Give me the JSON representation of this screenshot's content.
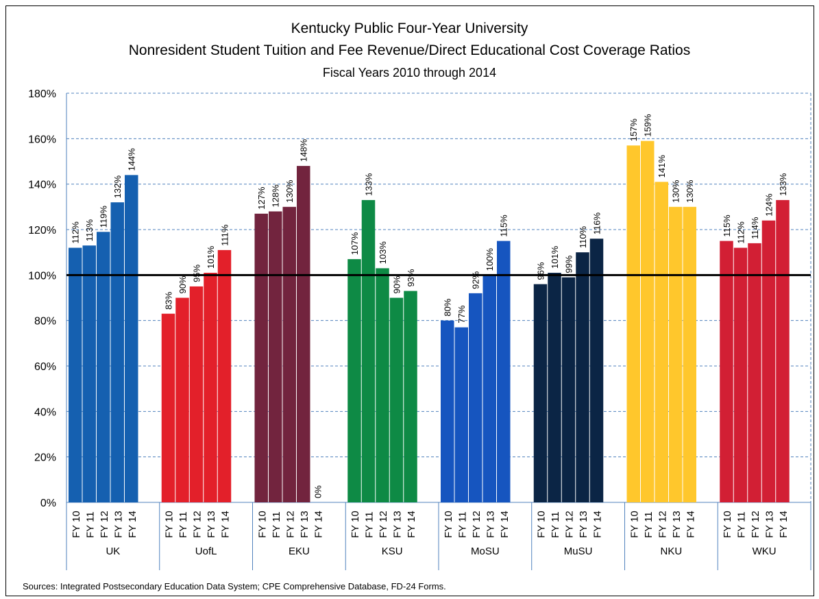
{
  "chart_data": {
    "type": "bar",
    "title": "Kentucky Public Four-Year University",
    "subtitle": "Nonresident Student Tuition and Fee Revenue/Direct Educational Cost Coverage Ratios",
    "subtitle2": "Fiscal Years 2010 through 2014",
    "xlabel": "",
    "ylabel": "",
    "ylim": [
      0,
      180
    ],
    "y_ticks": [
      "0%",
      "20%",
      "40%",
      "60%",
      "80%",
      "100%",
      "120%",
      "140%",
      "160%",
      "180%"
    ],
    "y_tick_values": [
      0,
      20,
      40,
      60,
      80,
      100,
      120,
      140,
      160,
      180
    ],
    "reference_line": 100,
    "grid": true,
    "years": [
      "FY 10",
      "FY 11",
      "FY 12",
      "FY 13",
      "FY 14"
    ],
    "groups": [
      {
        "name": "UK",
        "color": "#1560B0",
        "values": [
          112,
          113,
          119,
          132,
          144
        ],
        "labels": [
          "112%",
          "113%",
          "119%",
          "132%",
          "144%"
        ]
      },
      {
        "name": "UofL",
        "color": "#E3202A",
        "values": [
          83,
          90,
          95,
          101,
          111
        ],
        "labels": [
          "83%",
          "90%",
          "95%",
          "101%",
          "111%"
        ]
      },
      {
        "name": "EKU",
        "color": "#72243E",
        "values": [
          127,
          128,
          130,
          148,
          0
        ],
        "labels": [
          "127%",
          "128%",
          "130%",
          "148%",
          "0%"
        ]
      },
      {
        "name": "KSU",
        "color": "#0E8A45",
        "values": [
          107,
          133,
          103,
          90,
          93
        ],
        "labels": [
          "107%",
          "133%",
          "103%",
          "90%",
          "93%"
        ]
      },
      {
        "name": "MoSU",
        "color": "#1655BF",
        "values": [
          80,
          77,
          92,
          100,
          115
        ],
        "labels": [
          "80%",
          "77%",
          "92%",
          "100%",
          "115%"
        ]
      },
      {
        "name": "MuSU",
        "color": "#0B2545",
        "values": [
          96,
          101,
          99,
          110,
          116
        ],
        "labels": [
          "96%",
          "101%",
          "99%",
          "110%",
          "116%"
        ]
      },
      {
        "name": "NKU",
        "color": "#FFC72C",
        "values": [
          157,
          159,
          141,
          130,
          130
        ],
        "labels": [
          "157%",
          "159%",
          "141%",
          "130%",
          "130%"
        ]
      },
      {
        "name": "WKU",
        "color": "#D21F34",
        "values": [
          115,
          112,
          114,
          124,
          133
        ],
        "labels": [
          "115%",
          "112%",
          "114%",
          "124%",
          "133%"
        ]
      }
    ]
  },
  "source": "Sources:  Integrated Postsecondary Education Data System; CPE Comprehensive Database, FD-24 Forms."
}
